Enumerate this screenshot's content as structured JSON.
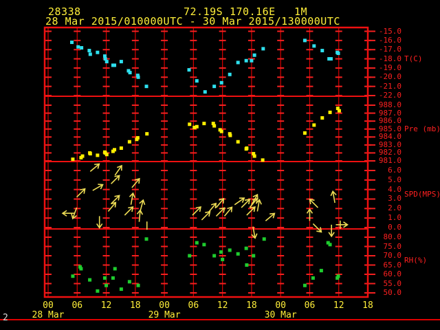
{
  "header": {
    "station_id": "28338",
    "latitude": "72.19S",
    "longitude": "170.16E",
    "elevation": "1M",
    "period": "28 Mar 2015/010000UTC - 30 Mar 2015/130000UTC"
  },
  "page_number": "2",
  "colors": {
    "background": "#000000",
    "grid_red": "#d90000",
    "frame_red": "#ef1010",
    "axis_text_red": "#ff2020",
    "label_yellow": "#ffef3a",
    "temperature_cyan": "#2ee0ee",
    "pressure_yellow": "#ffee00",
    "wind_yellow": "#eedd55",
    "humidity_green": "#1ecc2e"
  },
  "chart_data": {
    "type": "meteogram",
    "x": {
      "unit": "hours since 28 Mar 2015 00UTC",
      "range": [
        0,
        66
      ],
      "hour_tick_labels": [
        "00",
        "06",
        "12",
        "18",
        "00",
        "06",
        "12",
        "18",
        "00",
        "06",
        "12",
        "18"
      ],
      "date_labels": [
        {
          "label": "28 Mar",
          "t": 0
        },
        {
          "label": "29 Mar",
          "t": 24
        },
        {
          "label": "30 Mar",
          "t": 48
        }
      ]
    },
    "panels": [
      {
        "type": "scatter",
        "name": "temperature",
        "label": "T(C)",
        "color": "#2ee0ee",
        "ymax": -15.0,
        "ymin": -22.0,
        "yticks": [
          "-15.0",
          "-16.0",
          "-17.0",
          "-18.0",
          "-19.0",
          "-20.0",
          "-21.0",
          "-22.0"
        ],
        "points": [
          [
            4.9,
            -16.2
          ],
          [
            6.2,
            -16.7
          ],
          [
            6.9,
            -16.8
          ],
          [
            8.5,
            -17.1
          ],
          [
            8.7,
            -17.5
          ],
          [
            10.2,
            -17.3
          ],
          [
            11.7,
            -17.7
          ],
          [
            11.8,
            -18.0
          ],
          [
            12.1,
            -18.3
          ],
          [
            13.4,
            -18.7
          ],
          [
            13.7,
            -18.7
          ],
          [
            15.1,
            -18.3
          ],
          [
            16.6,
            -19.3
          ],
          [
            16.9,
            -19.5
          ],
          [
            18.5,
            -19.8
          ],
          [
            18.6,
            -20.0
          ],
          [
            20.3,
            -21.0
          ],
          [
            29.1,
            -19.2
          ],
          [
            30.7,
            -20.4
          ],
          [
            32.4,
            -21.6
          ],
          [
            34.3,
            -21.0
          ],
          [
            35.8,
            -20.6
          ],
          [
            37.5,
            -19.7
          ],
          [
            39.2,
            -18.4
          ],
          [
            40.9,
            -18.2
          ],
          [
            42.0,
            -18.2
          ],
          [
            42.6,
            -17.6
          ],
          [
            44.4,
            -16.9
          ],
          [
            53.0,
            -16.0
          ],
          [
            54.9,
            -16.6
          ],
          [
            56.6,
            -17.1
          ],
          [
            58.0,
            -18.0
          ],
          [
            58.4,
            -18.0
          ],
          [
            59.7,
            -17.3
          ],
          [
            59.9,
            -17.4
          ]
        ]
      },
      {
        "type": "scatter",
        "name": "pressure",
        "label": "Pre (mb)",
        "color": "#ffee00",
        "ymax": 988.0,
        "ymin": 981.0,
        "yticks": [
          "988.0",
          "987.0",
          "986.0",
          "985.0",
          "984.0",
          "983.0",
          "982.0",
          "981.0"
        ],
        "points": [
          [
            5.1,
            981.2
          ],
          [
            6.8,
            981.4
          ],
          [
            7.1,
            981.6
          ],
          [
            8.6,
            982.0
          ],
          [
            8.7,
            981.9
          ],
          [
            10.2,
            981.7
          ],
          [
            11.7,
            982.1
          ],
          [
            11.8,
            982.0
          ],
          [
            12.1,
            981.8
          ],
          [
            13.4,
            982.2
          ],
          [
            13.7,
            982.4
          ],
          [
            15.1,
            982.6
          ],
          [
            16.8,
            983.4
          ],
          [
            18.3,
            983.7
          ],
          [
            18.5,
            983.9
          ],
          [
            20.4,
            984.4
          ],
          [
            29.2,
            985.6
          ],
          [
            30.2,
            985.2
          ],
          [
            30.7,
            985.3
          ],
          [
            32.2,
            985.7
          ],
          [
            34.1,
            985.7
          ],
          [
            34.3,
            985.4
          ],
          [
            35.5,
            984.9
          ],
          [
            35.8,
            984.7
          ],
          [
            37.5,
            984.4
          ],
          [
            37.6,
            984.2
          ],
          [
            39.2,
            983.4
          ],
          [
            40.9,
            982.5
          ],
          [
            41.0,
            982.6
          ],
          [
            42.4,
            981.9
          ],
          [
            42.6,
            981.6
          ],
          [
            44.3,
            981.1
          ],
          [
            53.0,
            984.5
          ],
          [
            54.9,
            985.5
          ],
          [
            56.6,
            986.4
          ],
          [
            58.2,
            987.1
          ],
          [
            59.8,
            987.6
          ],
          [
            60.1,
            987.3
          ]
        ]
      },
      {
        "type": "vector",
        "name": "wind-speed",
        "label": "SPD(MPS)",
        "color": "#eedd55",
        "ymax": 6.0,
        "ymin": 0.0,
        "yticks": [
          "6.0",
          "5.0",
          "4.0",
          "3.0",
          "2.0",
          "1.0",
          "0.0"
        ],
        "arrows": [
          {
            "t": 5.4,
            "v": 1.5,
            "dir": 180
          },
          {
            "t": 5.9,
            "v": 3.2,
            "dir": 45
          },
          {
            "t": 5.9,
            "v": 2.1,
            "dir": 250
          },
          {
            "t": 8.7,
            "v": 5.9,
            "dir": 40
          },
          {
            "t": 9.2,
            "v": 3.9,
            "dir": 30
          },
          {
            "t": 10.6,
            "v": 1.2,
            "dir": 270
          },
          {
            "t": 12.4,
            "v": 1.7,
            "dir": 50
          },
          {
            "t": 13.0,
            "v": 4.6,
            "dir": 45
          },
          {
            "t": 13.0,
            "v": 2.5,
            "dir": 45
          },
          {
            "t": 13.8,
            "v": 5.5,
            "dir": 55
          },
          {
            "t": 15.8,
            "v": 1.3,
            "dir": 45
          },
          {
            "t": 17.1,
            "v": 2.4,
            "dir": 80
          },
          {
            "t": 17.3,
            "v": 4.2,
            "dir": 50
          },
          {
            "t": 18.8,
            "v": 0.6,
            "dir": 85
          },
          {
            "t": 19.0,
            "v": 1.7,
            "dir": 75
          },
          {
            "t": 20.4,
            "v": 0.2,
            "bar": true
          },
          {
            "t": 29.8,
            "v": 1.3,
            "dir": 45
          },
          {
            "t": 31.7,
            "v": 0.8,
            "dir": 45
          },
          {
            "t": 33.1,
            "v": 1.6,
            "dir": 50
          },
          {
            "t": 34.7,
            "v": 2.1,
            "dir": 50
          },
          {
            "t": 34.7,
            "v": 1.2,
            "dir": 45
          },
          {
            "t": 36.4,
            "v": 1.2,
            "dir": 50
          },
          {
            "t": 38.5,
            "v": 2.4,
            "dir": 35
          },
          {
            "t": 39.9,
            "v": 2.1,
            "dir": 45
          },
          {
            "t": 41.0,
            "v": 1.3,
            "dir": 45
          },
          {
            "t": 41.6,
            "v": 2.1,
            "dir": 50
          },
          {
            "t": 42.0,
            "v": 2.4,
            "dir": 60
          },
          {
            "t": 42.3,
            "v": 0.1,
            "dir": 280
          },
          {
            "t": 43.2,
            "v": 1.7,
            "dir": 80
          },
          {
            "t": 44.9,
            "v": 0.7,
            "dir": 40
          },
          {
            "t": 54.0,
            "v": 0.7,
            "dir": 90
          },
          {
            "t": 54.7,
            "v": 0.4,
            "dir": 315
          },
          {
            "t": 55.7,
            "v": 2.1,
            "dir": 135
          },
          {
            "t": 58.5,
            "v": 0.3,
            "dir": 270
          },
          {
            "t": 59.2,
            "v": 2.6,
            "dir": 100
          },
          {
            "t": 59.4,
            "v": 0.3,
            "dir": 0
          },
          {
            "t": 60.3,
            "v": 0.3,
            "bar": true
          }
        ]
      },
      {
        "type": "scatter",
        "name": "relative-humidity",
        "label": "RH(%)",
        "color": "#1ecc2e",
        "ymax": 80.0,
        "ymin": 50.0,
        "yticks": [
          "80.0",
          "75.0",
          "70.0",
          "65.0",
          "60.0",
          "55.0",
          "50.0"
        ],
        "points": [
          [
            5.1,
            59
          ],
          [
            6.6,
            64
          ],
          [
            6.8,
            63
          ],
          [
            8.6,
            57
          ],
          [
            10.2,
            51
          ],
          [
            11.7,
            58
          ],
          [
            12.0,
            54
          ],
          [
            13.4,
            58
          ],
          [
            13.8,
            63
          ],
          [
            15.1,
            52
          ],
          [
            16.8,
            56
          ],
          [
            18.6,
            54
          ],
          [
            20.3,
            79
          ],
          [
            29.2,
            70
          ],
          [
            30.7,
            77
          ],
          [
            32.2,
            76
          ],
          [
            34.3,
            70
          ],
          [
            35.7,
            72
          ],
          [
            36.0,
            68
          ],
          [
            37.5,
            73
          ],
          [
            39.2,
            71
          ],
          [
            40.9,
            74
          ],
          [
            41.0,
            65
          ],
          [
            42.4,
            70
          ],
          [
            44.6,
            79
          ],
          [
            53.0,
            54
          ],
          [
            54.7,
            58
          ],
          [
            56.4,
            62
          ],
          [
            57.8,
            77
          ],
          [
            58.2,
            76
          ],
          [
            59.7,
            58
          ],
          [
            59.9,
            59
          ]
        ]
      }
    ]
  }
}
